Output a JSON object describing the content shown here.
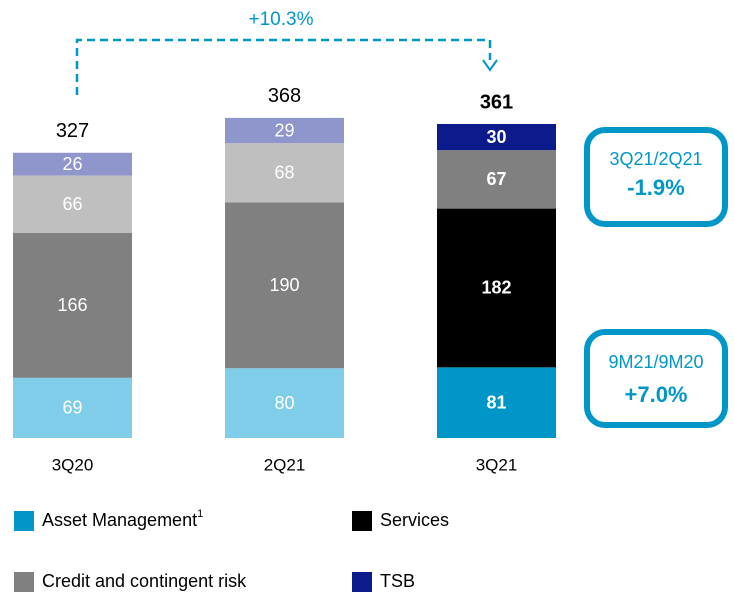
{
  "chart_data": {
    "type": "stacked_bar",
    "categories": [
      "3Q20",
      "2Q21",
      "3Q21"
    ],
    "series": [
      {
        "name": "Asset Management",
        "note": "1",
        "color": "#0097c8",
        "colors": [
          "#7fcde8",
          "#7fcde8",
          "#0097c8"
        ],
        "values": [
          69,
          80,
          81
        ]
      },
      {
        "name": "Services",
        "color": "#000000",
        "colors": [
          "#808080",
          "#808080",
          "#000000"
        ],
        "values": [
          166,
          190,
          182
        ]
      },
      {
        "name": "Credit and contingent risk",
        "color": "#808080",
        "colors": [
          "#bfbfbf",
          "#bfbfbf",
          "#808080"
        ],
        "values": [
          66,
          68,
          67
        ]
      },
      {
        "name": "TSB",
        "color": "#0d1a8c",
        "colors": [
          "#8e96cc",
          "#8e96cc",
          "#0d1a8c"
        ],
        "values": [
          26,
          29,
          30
        ]
      }
    ],
    "totals": [
      327,
      368,
      361
    ],
    "highlight_index": 2,
    "annotations": {
      "growth": "+10.3%",
      "boxes": [
        {
          "label": "3Q21/2Q21",
          "value": "-1.9%"
        },
        {
          "label": "9M21/9M20",
          "value": "+7.0%"
        }
      ]
    }
  }
}
